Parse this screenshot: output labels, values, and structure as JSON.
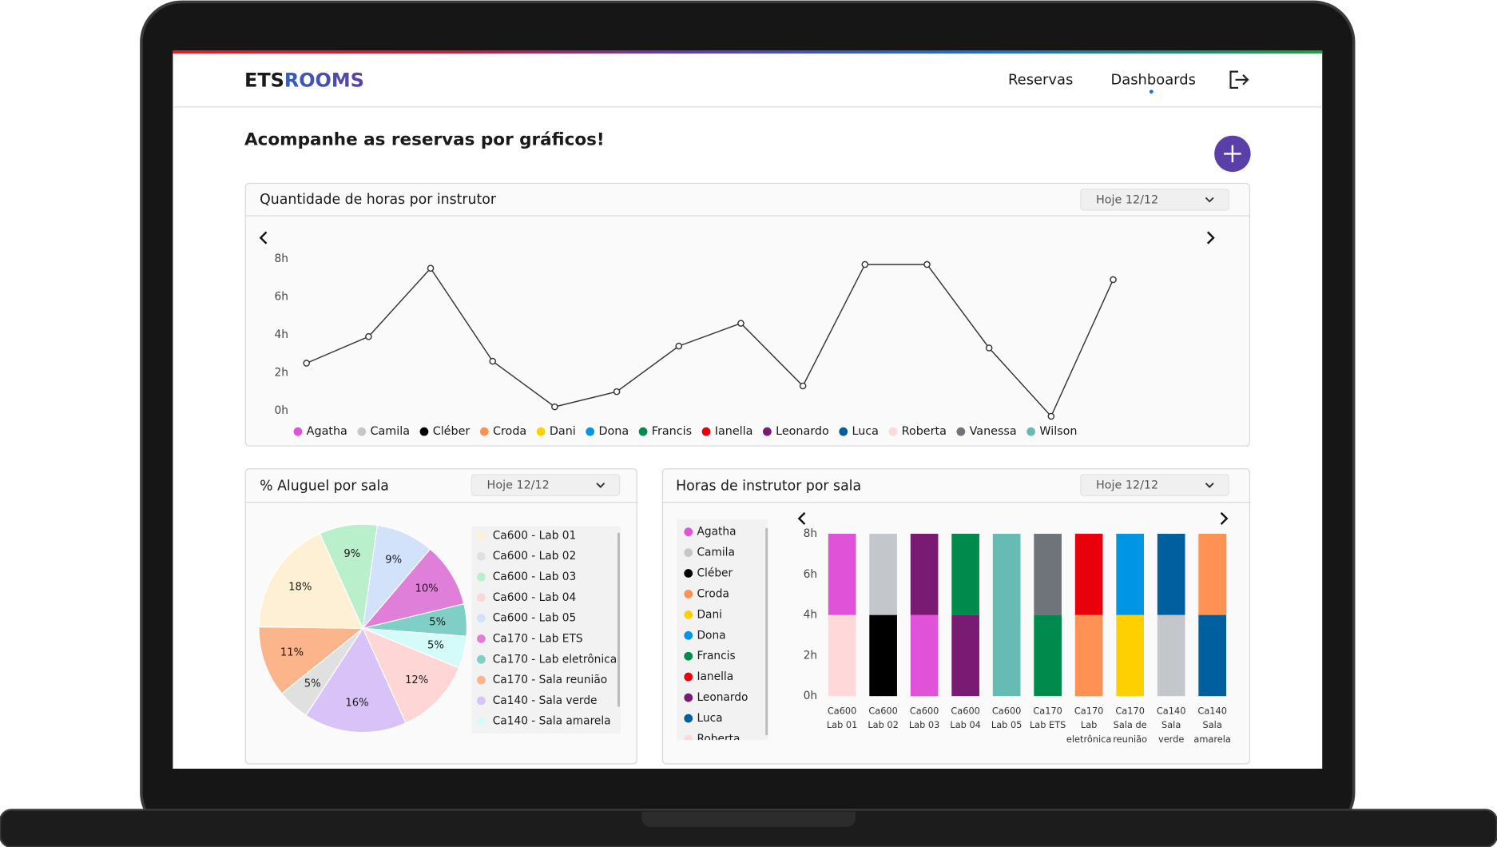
{
  "header": {
    "logo": [
      "ETS",
      "ROOMS"
    ],
    "nav": [
      "Reservas",
      "Dashboards"
    ]
  },
  "heading": "Acompanhe as reservas por gráficos!",
  "chart_data": [
    {
      "type": "line",
      "title": "Quantidade de horas por instrutor",
      "filter": "Hoje 12/12",
      "categories": [
        null,
        null,
        null,
        null,
        null,
        null,
        null,
        null,
        null,
        null,
        null,
        null,
        null,
        null
      ],
      "values": [
        2.5,
        3.9,
        7.5,
        2.6,
        0.2,
        1.0,
        3.4,
        4.6,
        1.3,
        7.7,
        7.7,
        3.3,
        -0.3,
        6.9
      ],
      "color": "#333333",
      "ylim": [
        0,
        8
      ],
      "yticks": [
        {
          "value": 0,
          "label": "0h"
        },
        {
          "value": 2,
          "label": "2h"
        },
        {
          "value": 4,
          "label": "4h"
        },
        {
          "value": 6,
          "label": "6h"
        },
        {
          "value": 8,
          "label": "8h"
        }
      ],
      "legend": [
        {
          "name": "Agatha",
          "color": "#e052d8"
        },
        {
          "name": "Camila",
          "color": "#c3c7cc"
        },
        {
          "name": "Cléber",
          "color": "#000000"
        },
        {
          "name": "Croda",
          "color": "#ff9155"
        },
        {
          "name": "Dani",
          "color": "#ffd000"
        },
        {
          "name": "Dona",
          "color": "#0096e6"
        },
        {
          "name": "Francis",
          "color": "#008a4c"
        },
        {
          "name": "Ianella",
          "color": "#e8000b"
        },
        {
          "name": "Leonardo",
          "color": "#7a1b73"
        },
        {
          "name": "Luca",
          "color": "#005f9e"
        },
        {
          "name": "Roberta",
          "color": "#ffd9d9"
        },
        {
          "name": "Vanessa",
          "color": "#6f747b"
        },
        {
          "name": "Wilson",
          "color": "#66bbb3"
        }
      ]
    },
    {
      "type": "pie",
      "title": "% Aluguel por sala",
      "filter": "Hoje 12/12",
      "values": [
        9,
        10,
        5,
        5,
        12,
        16,
        5,
        11,
        18,
        9
      ],
      "value_labels": [
        "9%",
        "10%",
        "5%",
        "5%",
        "12%",
        "16%",
        "5%",
        "11%",
        "18%",
        "9%"
      ],
      "colors": [
        "#d2e2fb",
        "#e07fd9",
        "#7fcfc6",
        "#d4fbfa",
        "#ffd6d6",
        "#d9c2f7",
        "#e0e0e0",
        "#fcb48a",
        "#fdf0d5",
        "#b9efca"
      ],
      "legend": [
        {
          "name": "Ca600 - Lab 01",
          "color": "#fdf0d5"
        },
        {
          "name": "Ca600 - Lab 02",
          "color": "#e0e0e0"
        },
        {
          "name": "Ca600 - Lab 03",
          "color": "#b9efca"
        },
        {
          "name": "Ca600 - Lab 04",
          "color": "#ffd6d6"
        },
        {
          "name": "Ca600 - Lab 05",
          "color": "#d2e2fb"
        },
        {
          "name": "Ca170 - Lab ETS",
          "color": "#e07fd9"
        },
        {
          "name": "Ca170 - Lab eletrônica",
          "color": "#7fcfc6"
        },
        {
          "name": "Ca170 - Sala reunião",
          "color": "#fcb48a"
        },
        {
          "name": "Ca140 - Sala verde",
          "color": "#d9c2f7"
        },
        {
          "name": "Ca140 - Sala amarela",
          "color": "#d4fbfa"
        }
      ]
    },
    {
      "type": "bar",
      "title": "Horas de instrutor por sala",
      "filter": "Hoje 12/12",
      "categories": [
        [
          "Ca600",
          "Lab 01"
        ],
        [
          "Ca600",
          "Lab 02"
        ],
        [
          "Ca600",
          "Lab 03"
        ],
        [
          "Ca600",
          "Lab 04"
        ],
        [
          "Ca600",
          "Lab 05"
        ],
        [
          "Ca170",
          "Lab ETS"
        ],
        [
          "Ca170",
          "Lab",
          "eletrônica"
        ],
        [
          "Ca170",
          "Sala de",
          "reunião"
        ],
        [
          "Ca140",
          "Sala",
          "verde"
        ],
        [
          "Ca140",
          "Sala",
          "amarela"
        ]
      ],
      "series": [
        {
          "color": "#ffd9d9",
          "values": [
            4,
            null,
            null,
            null,
            null,
            null,
            null,
            null,
            null,
            null
          ]
        },
        {
          "color": "#e052d8",
          "values": [
            4,
            null,
            4,
            null,
            null,
            null,
            null,
            null,
            null,
            null
          ]
        },
        {
          "color": "#7a1b73",
          "values": [
            null,
            null,
            4,
            4,
            null,
            null,
            null,
            null,
            null,
            null
          ]
        },
        {
          "color": "#008a4c",
          "values": [
            null,
            null,
            null,
            4,
            null,
            4,
            null,
            null,
            null,
            null
          ]
        },
        {
          "color": "#6f747b",
          "values": [
            null,
            null,
            null,
            null,
            null,
            4,
            null,
            null,
            null,
            null
          ]
        },
        {
          "color": "#000000",
          "values": [
            null,
            4,
            null,
            null,
            null,
            null,
            null,
            null,
            null,
            null
          ]
        },
        {
          "color": "#c3c7cc",
          "values": [
            null,
            4,
            null,
            null,
            null,
            null,
            null,
            null,
            4,
            null
          ]
        },
        {
          "color": "#005f9e",
          "values": [
            null,
            null,
            null,
            null,
            null,
            null,
            null,
            null,
            4,
            4
          ]
        },
        {
          "color": "#ff9155",
          "values": [
            null,
            null,
            null,
            null,
            null,
            null,
            4,
            null,
            null,
            4
          ]
        },
        {
          "color": "#e8000b",
          "values": [
            null,
            null,
            null,
            null,
            null,
            null,
            4,
            null,
            null,
            null
          ]
        },
        {
          "color": "#ffd000",
          "values": [
            null,
            null,
            null,
            null,
            null,
            null,
            null,
            4,
            null,
            null
          ]
        },
        {
          "color": "#0096e6",
          "values": [
            null,
            null,
            null,
            null,
            null,
            null,
            null,
            4,
            null,
            null
          ]
        },
        {
          "color": "#66bbb3",
          "values": [
            null,
            null,
            null,
            null,
            8,
            null,
            null,
            null,
            null,
            null
          ]
        }
      ],
      "ylim": [
        0,
        8
      ],
      "yticks": [
        {
          "value": 0,
          "label": "0h"
        },
        {
          "value": 2,
          "label": "2h"
        },
        {
          "value": 4,
          "label": "4h"
        },
        {
          "value": 6,
          "label": "6h"
        },
        {
          "value": 8,
          "label": "8h"
        }
      ],
      "legend": [
        {
          "name": "Agatha",
          "color": "#e052d8"
        },
        {
          "name": "Camila",
          "color": "#c3c7cc"
        },
        {
          "name": "Cléber",
          "color": "#000000"
        },
        {
          "name": "Croda",
          "color": "#ff9155"
        },
        {
          "name": "Dani",
          "color": "#ffd000"
        },
        {
          "name": "Dona",
          "color": "#0096e6"
        },
        {
          "name": "Francis",
          "color": "#008a4c"
        },
        {
          "name": "Ianella",
          "color": "#e8000b"
        },
        {
          "name": "Leonardo",
          "color": "#7a1b73"
        },
        {
          "name": "Luca",
          "color": "#005f9e"
        },
        {
          "name": "Roberta",
          "color": "#ffd9d9"
        }
      ]
    }
  ]
}
